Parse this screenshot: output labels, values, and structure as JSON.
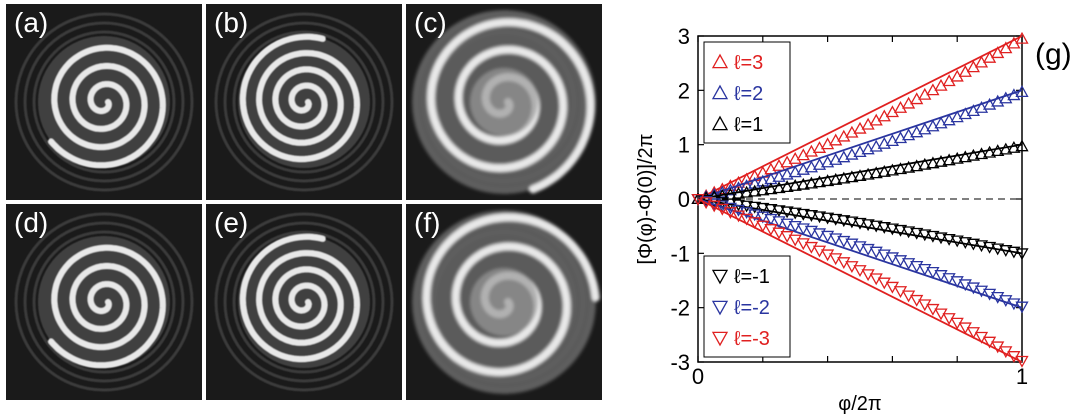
{
  "panels": [
    {
      "label": "(a)",
      "turns": 3.4,
      "blur": 0
    },
    {
      "label": "(b)",
      "turns": 3.8,
      "blur": 0
    },
    {
      "label": "(c)",
      "turns": 3.2,
      "blur": 1
    },
    {
      "label": "(d)",
      "turns": 3.4,
      "blur": 0
    },
    {
      "label": "(e)",
      "turns": 3.8,
      "blur": 0
    },
    {
      "label": "(f)",
      "turns": 3.0,
      "blur": 1
    }
  ],
  "chart_data": {
    "type": "scatter",
    "panel_label": "(g)",
    "xlabel": "φ/2π",
    "ylabel": "[Φ(φ)-Φ(0)]/2π",
    "xlim": [
      0,
      1
    ],
    "ylim": [
      -3,
      3
    ],
    "x_ticks": [
      "0",
      "1"
    ],
    "y_ticks": [
      "-3",
      "-2",
      "-1",
      "0",
      "1",
      "2",
      "3"
    ],
    "grid": false,
    "reference_line": {
      "y": 0,
      "style": "dashed"
    },
    "series": [
      {
        "name": "ℓ=3",
        "slope": 3,
        "color": "#e02020",
        "marker": "triangle-up",
        "measured_end": 2.95
      },
      {
        "name": "ℓ=2",
        "slope": 2,
        "color": "#2a35a0",
        "marker": "triangle-up",
        "measured_end": 1.97
      },
      {
        "name": "ℓ=1",
        "slope": 1,
        "color": "#000000",
        "marker": "triangle-up",
        "measured_end": 0.97
      },
      {
        "name": "ℓ=-1",
        "slope": -1,
        "color": "#000000",
        "marker": "triangle-down",
        "measured_end": -1.0
      },
      {
        "name": "ℓ=-2",
        "slope": -2,
        "color": "#2a35a0",
        "marker": "triangle-down",
        "measured_end": -1.98
      },
      {
        "name": "ℓ=-3",
        "slope": -3,
        "color": "#e02020",
        "marker": "triangle-down",
        "measured_end": -2.98
      }
    ],
    "n_markers": 40,
    "legends": [
      {
        "placement": "top-left",
        "entries": [
          "ℓ=3",
          "ℓ=2",
          "ℓ=1"
        ]
      },
      {
        "placement": "bottom-left",
        "entries": [
          "ℓ=-1",
          "ℓ=-2",
          "ℓ=-3"
        ]
      }
    ]
  }
}
